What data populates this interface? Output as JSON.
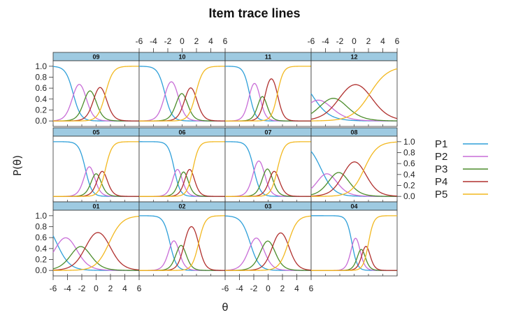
{
  "chart_data": {
    "type": "line",
    "title": "Item trace lines",
    "xlabel": "θ",
    "ylabel": "P(θ)",
    "xlim": [
      -6,
      6
    ],
    "ylim": [
      -0.1,
      1.1
    ],
    "x_ticks": [
      "-6",
      "-4",
      "-2",
      "0",
      "2",
      "4",
      "6"
    ],
    "y_ticks": [
      "0.0",
      "0.2",
      "0.4",
      "0.6",
      "0.8",
      "1.0"
    ],
    "layout": "3 rows x 4 columns",
    "legend": {
      "position": "right",
      "entries": [
        {
          "name": "P1",
          "color": "#2E9FD9"
        },
        {
          "name": "P2",
          "color": "#C86DD7"
        },
        {
          "name": "P3",
          "color": "#4C8C2B"
        },
        {
          "name": "P4",
          "color": "#B0302E"
        },
        {
          "name": "P5",
          "color": "#F2B81F"
        }
      ]
    },
    "panels": [
      {
        "label": "09",
        "row": 0,
        "col": 0,
        "a": 1.9,
        "b": [
          -3.2,
          -1.5,
          -0.2,
          1.3
        ]
      },
      {
        "label": "10",
        "row": 0,
        "col": 1,
        "a": 2.0,
        "b": [
          -2.4,
          -0.6,
          0.5,
          1.9
        ]
      },
      {
        "label": "11",
        "row": 0,
        "col": 2,
        "a": 2.4,
        "b": [
          -2.6,
          -1.2,
          -0.4,
          1.3
        ]
      },
      {
        "label": "12",
        "row": 0,
        "col": 3,
        "a": 0.8,
        "b": [
          -6.0,
          -4.0,
          -1.8,
          2.2
        ]
      },
      {
        "label": "05",
        "row": 1,
        "col": 0,
        "a": 2.2,
        "b": [
          -1.5,
          -0.4,
          0.4,
          1.3
        ]
      },
      {
        "label": "06",
        "row": 1,
        "col": 1,
        "a": 2.4,
        "b": [
          -1.1,
          -0.2,
          0.6,
          1.5
        ]
      },
      {
        "label": "07",
        "row": 1,
        "col": 2,
        "a": 2.2,
        "b": [
          -2.0,
          -0.6,
          0.4,
          1.3
        ]
      },
      {
        "label": "08",
        "row": 1,
        "col": 3,
        "a": 1.1,
        "b": [
          -4.6,
          -3.0,
          -1.3,
          1.4
        ]
      },
      {
        "label": "01",
        "row": 2,
        "col": 0,
        "a": 1.1,
        "b": [
          -5.5,
          -3.0,
          -1.3,
          1.8
        ]
      },
      {
        "label": "02",
        "row": 2,
        "col": 1,
        "a": 2.2,
        "b": [
          -1.7,
          -0.6,
          0.3,
          2.3
        ]
      },
      {
        "label": "03",
        "row": 2,
        "col": 2,
        "a": 1.6,
        "b": [
          -2.5,
          -0.8,
          0.7,
          2.8
        ]
      },
      {
        "label": "04",
        "row": 2,
        "col": 3,
        "a": 2.7,
        "b": [
          -0.3,
          0.7,
          1.3,
          2.0
        ]
      }
    ]
  }
}
